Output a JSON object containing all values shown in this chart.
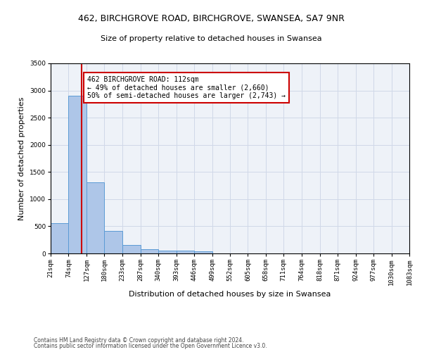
{
  "title_line1": "462, BIRCHGROVE ROAD, BIRCHGROVE, SWANSEA, SA7 9NR",
  "title_line2": "Size of property relative to detached houses in Swansea",
  "xlabel": "Distribution of detached houses by size in Swansea",
  "ylabel": "Number of detached properties",
  "footer_line1": "Contains HM Land Registry data © Crown copyright and database right 2024.",
  "footer_line2": "Contains public sector information licensed under the Open Government Licence v3.0.",
  "bins": [
    21,
    74,
    127,
    180,
    233,
    287,
    340,
    393,
    446,
    499,
    552,
    605,
    658,
    711,
    764,
    818,
    871,
    924,
    977,
    1030,
    1083
  ],
  "bin_labels": [
    "21sqm",
    "74sqm",
    "127sqm",
    "180sqm",
    "233sqm",
    "287sqm",
    "340sqm",
    "393sqm",
    "446sqm",
    "499sqm",
    "552sqm",
    "605sqm",
    "658sqm",
    "711sqm",
    "764sqm",
    "818sqm",
    "871sqm",
    "924sqm",
    "977sqm",
    "1030sqm",
    "1083sqm"
  ],
  "bar_heights": [
    560,
    2900,
    1310,
    410,
    155,
    80,
    55,
    50,
    40,
    0,
    0,
    0,
    0,
    0,
    0,
    0,
    0,
    0,
    0,
    0
  ],
  "bar_color": "#aec6e8",
  "bar_edge_color": "#5b9bd5",
  "grid_color": "#d0d8e8",
  "bg_color": "#eef2f8",
  "vline_x": 112,
  "vline_color": "#cc0000",
  "ylim": [
    0,
    3500
  ],
  "yticks": [
    0,
    500,
    1000,
    1500,
    2000,
    2500,
    3000,
    3500
  ],
  "annotation_text": "462 BIRCHGROVE ROAD: 112sqm\n← 49% of detached houses are smaller (2,660)\n50% of semi-detached houses are larger (2,743) →",
  "annotation_box_color": "#cc0000",
  "title1_fontsize": 9,
  "title2_fontsize": 8,
  "axis_label_fontsize": 8,
  "tick_fontsize": 6.5,
  "footer_fontsize": 5.5,
  "annot_fontsize": 7
}
